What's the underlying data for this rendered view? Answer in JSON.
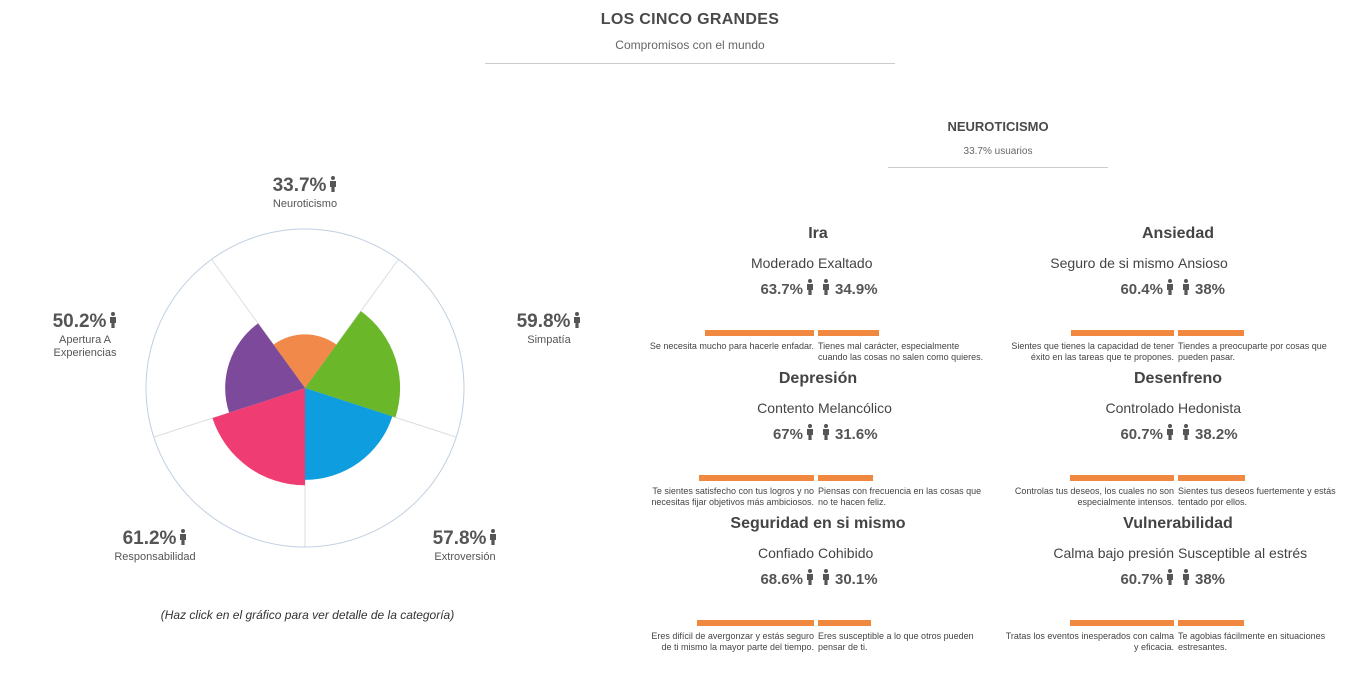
{
  "header": {
    "title": "LOS CINCO GRANDES",
    "subtitle": "Compromisos con el mundo"
  },
  "chart_data": {
    "type": "polar-area",
    "max": 100,
    "grid": true,
    "slices": [
      {
        "label": "Neuroticismo",
        "value": 33.7,
        "color": "#f0894a"
      },
      {
        "label": "Simpatía",
        "value": 59.8,
        "color": "#6ab72a"
      },
      {
        "label": "Extroversión",
        "value": 57.8,
        "color": "#0e9ee0"
      },
      {
        "label": "Responsabilidad",
        "value": 61.2,
        "color": "#ef3c72"
      },
      {
        "label": "Apertura A Experiencias",
        "value": 50.2,
        "color": "#7d4a9b"
      }
    ],
    "percent_labels": [
      "33.7%",
      "59.8%",
      "57.8%",
      "61.2%",
      "50.2%"
    ],
    "name_lines": [
      [
        "Neuroticismo"
      ],
      [
        "Simpatía"
      ],
      [
        "Extroversión"
      ],
      [
        "Responsabilidad"
      ],
      [
        "Apertura A",
        "Experiencias"
      ]
    ]
  },
  "hint": "(Haz click en el gráfico para ver detalle de la categoría)",
  "category": {
    "title": "NEUROTICISMO",
    "subtitle": "33.7% usuarios"
  },
  "accent_color": "#f0893f",
  "person_icon": "person-icon",
  "facets": [
    {
      "title": "Ira",
      "left": {
        "label": "Moderado",
        "pct": "63.7%",
        "value": 63.7,
        "desc": "Se necesita mucho para hacerle enfadar."
      },
      "right": {
        "label": "Exaltado",
        "pct": "34.9%",
        "value": 34.9,
        "desc": "Tienes mal carácter, especialmente cuando las cosas no salen como quieres."
      }
    },
    {
      "title": "Ansiedad",
      "left": {
        "label": "Seguro de si mismo",
        "pct": "60.4%",
        "value": 60.4,
        "desc": "Sientes que tienes la capacidad de tener éxito en las tareas que te propones."
      },
      "right": {
        "label": "Ansioso",
        "pct": "38%",
        "value": 38,
        "desc": "Tiendes a preocuparte por cosas que pueden pasar."
      }
    },
    {
      "title": "Depresión",
      "left": {
        "label": "Contento",
        "pct": "67%",
        "value": 67,
        "desc": "Te sientes satisfecho con tus logros y no necesitas fijar objetivos más ambiciosos."
      },
      "right": {
        "label": "Melancólico",
        "pct": "31.6%",
        "value": 31.6,
        "desc": "Piensas con frecuencia en las cosas que no te hacen feliz."
      }
    },
    {
      "title": "Desenfreno",
      "left": {
        "label": "Controlado",
        "pct": "60.7%",
        "value": 60.7,
        "desc": "Controlas tus deseos, los cuales no son especialmente intensos."
      },
      "right": {
        "label": "Hedonista",
        "pct": "38.2%",
        "value": 38.2,
        "desc": "Sientes tus deseos fuertemente y estás tentado por ellos."
      }
    },
    {
      "title": "Seguridad en si mismo",
      "left": {
        "label": "Confiado",
        "pct": "68.6%",
        "value": 68.6,
        "desc": "Eres difícil de avergonzar y estás seguro de ti mismo la mayor parte del tiempo."
      },
      "right": {
        "label": "Cohibido",
        "pct": "30.1%",
        "value": 30.1,
        "desc": "Eres susceptible a lo que otros pueden pensar de ti."
      }
    },
    {
      "title": "Vulnerabilidad",
      "left": {
        "label": "Calma bajo presión",
        "pct": "60.7%",
        "value": 60.7,
        "desc": "Tratas los eventos inesperados con calma y eficacia."
      },
      "right": {
        "label": "Susceptible al estrés",
        "pct": "38%",
        "value": 38,
        "desc": "Te agobias fácilmente en situaciones estresantes."
      }
    }
  ]
}
